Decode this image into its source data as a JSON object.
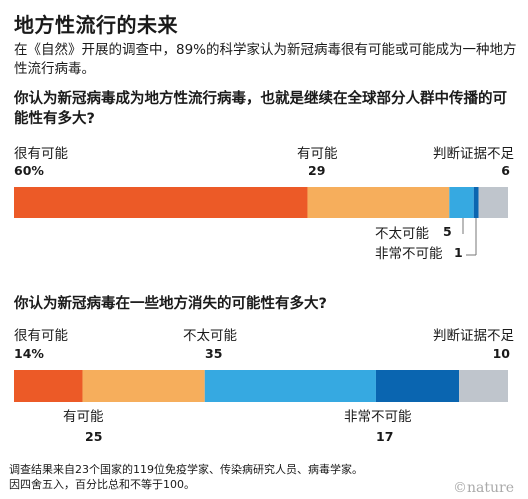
{
  "title": "地方性流行的未来",
  "intro": "在《自然》开展的调查中，89%的科学家认为新冠病毒很有可能或可能成为一种地方性流行病毒。",
  "colors": {
    "very_likely": "#ec5a27",
    "likely": "#f6ae5c",
    "not_very_likely": "#36a9e1",
    "very_unlikely": "#0a65b0",
    "insufficient": "#bfc5cc"
  },
  "chart_data": [
    {
      "type": "bar",
      "orientation": "horizontal-stacked",
      "title": "你认为新冠病毒成为地方性流行病毒，也就是继续在全球部分人群中传播的可能性有多大?",
      "series": [
        {
          "name": "很有可能",
          "value": 60,
          "label": "60%",
          "color": "#ec5a27"
        },
        {
          "name": "有可能",
          "value": 29,
          "label": "29",
          "color": "#f6ae5c"
        },
        {
          "name": "不太可能",
          "value": 5,
          "label": "5",
          "color": "#36a9e1"
        },
        {
          "name": "非常不可能",
          "value": 1,
          "label": "1",
          "color": "#0a65b0"
        },
        {
          "name": "判断证据不足",
          "value": 6,
          "label": "6",
          "color": "#bfc5cc"
        }
      ]
    },
    {
      "type": "bar",
      "orientation": "horizontal-stacked",
      "title": "你认为新冠病毒在一些地方消失的可能性有多大?",
      "series": [
        {
          "name": "很有可能",
          "value": 14,
          "label": "14%",
          "color": "#ec5a27"
        },
        {
          "name": "有可能",
          "value": 25,
          "label": "25",
          "color": "#f6ae5c"
        },
        {
          "name": "不太可能",
          "value": 35,
          "label": "35",
          "color": "#36a9e1"
        },
        {
          "name": "非常不可能",
          "value": 17,
          "label": "17",
          "color": "#0a65b0"
        },
        {
          "name": "判断证据不足",
          "value": 10,
          "label": "10",
          "color": "#bfc5cc"
        }
      ]
    }
  ],
  "note": {
    "line1": "调查结果来自23个国家的119位免疫学家、传染病研究人员、病毒学家。",
    "line2": "因四舍五入，百分比总和不等于100。"
  },
  "brand": "©nature"
}
